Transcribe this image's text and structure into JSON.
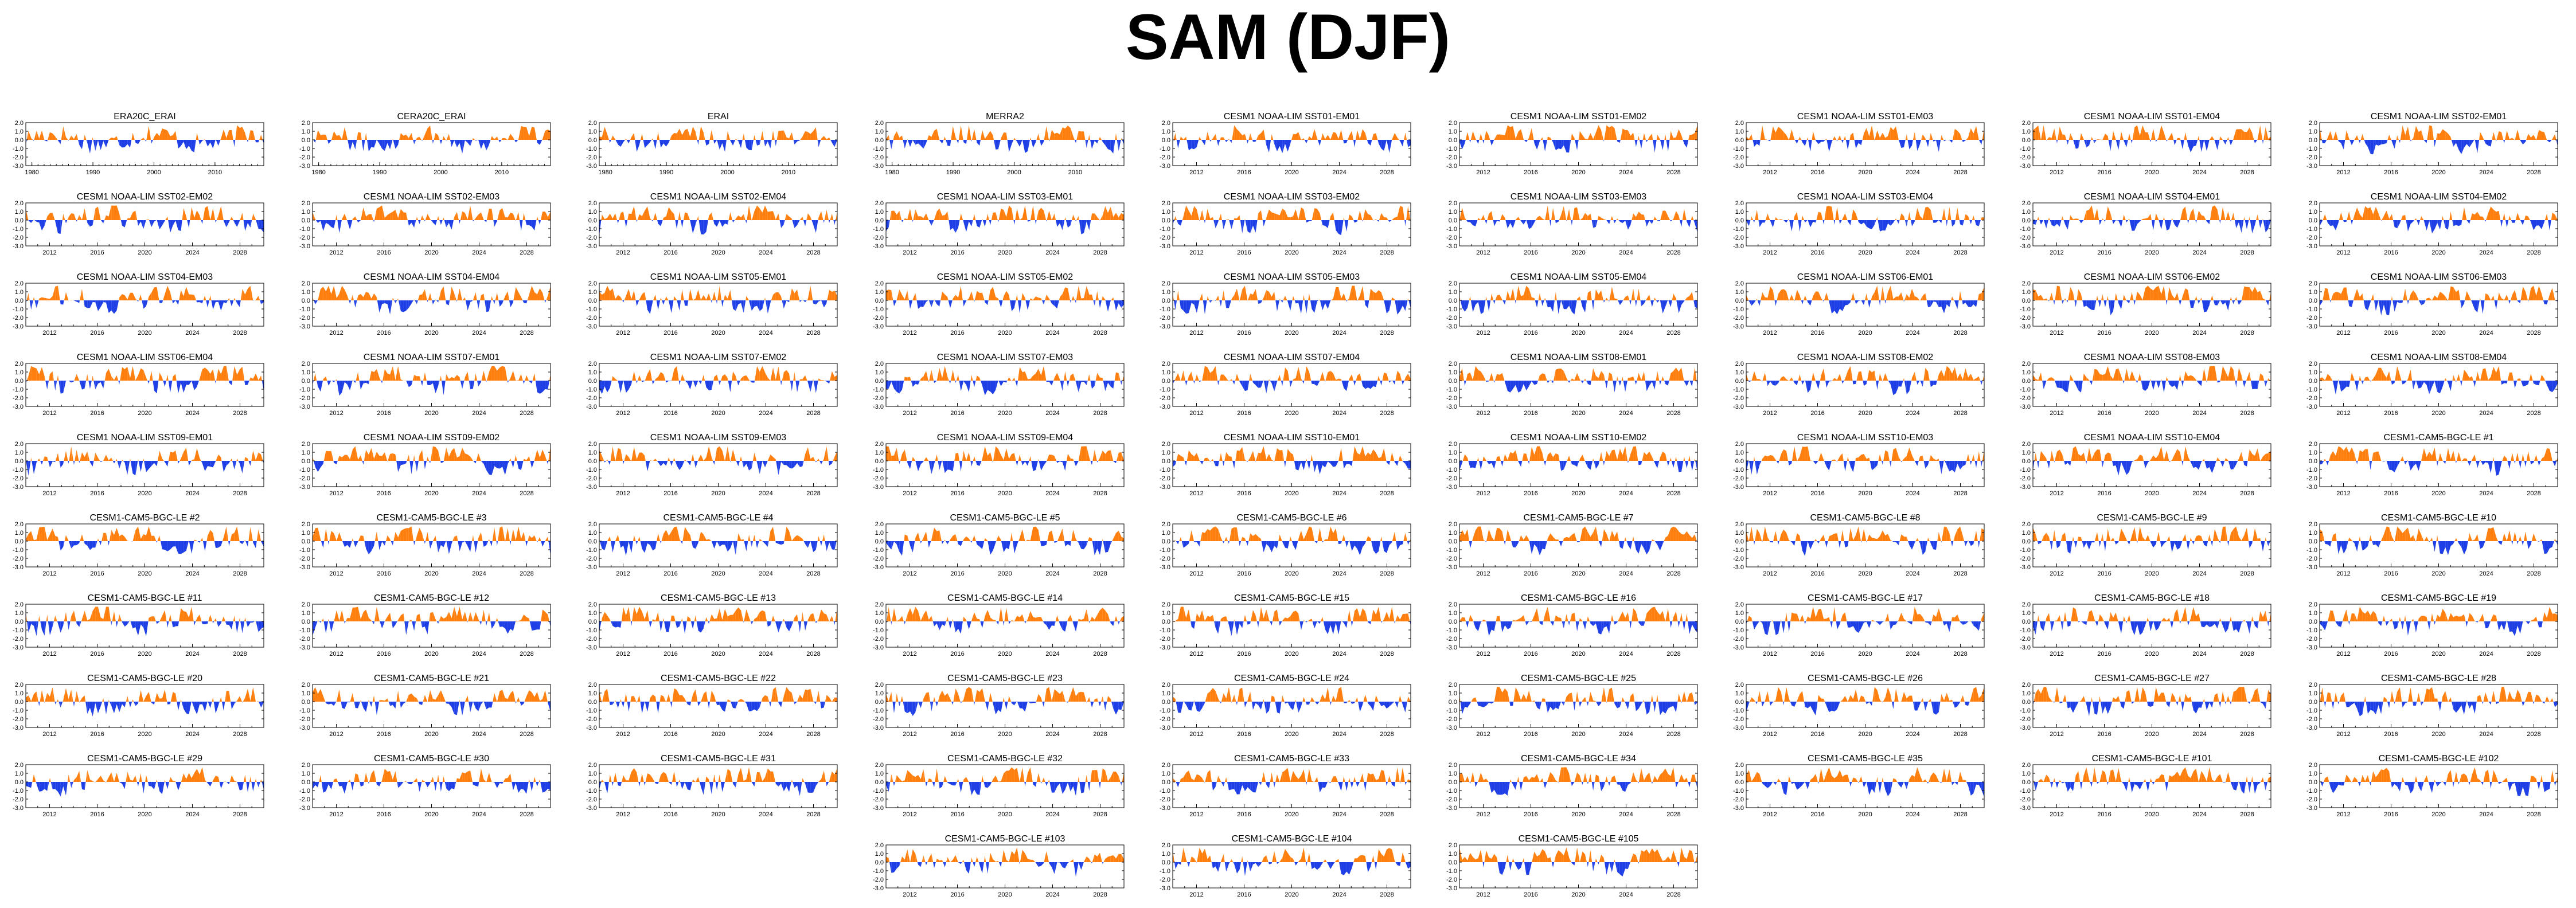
{
  "title": "SAM (DJF)",
  "colors": {
    "positive": "#ff7f0e",
    "negative": "#1f3fe6",
    "axis": "#000000"
  },
  "chart_data": {
    "type": "area",
    "value_axis": {
      "ylim": [
        -3.0,
        2.0
      ],
      "ticks": [
        "2.0",
        "1.0",
        "0.0",
        "-1.0",
        "-2.0",
        "-3.0"
      ]
    },
    "panels": [
      {
        "name": "ERA20C_ERAI",
        "years": [
          1980,
          1990,
          2000,
          2010
        ],
        "xlim": [
          1979,
          2018
        ]
      },
      {
        "name": "CERA20C_ERAI",
        "years": [
          1980,
          1990,
          2000,
          2010
        ],
        "xlim": [
          1979,
          2018
        ]
      },
      {
        "name": "ERAI",
        "years": [
          1980,
          1990,
          2000,
          2010
        ],
        "xlim": [
          1979,
          2018
        ]
      },
      {
        "name": "MERRA2",
        "years": [
          1980,
          1990,
          2000,
          2010
        ],
        "xlim": [
          1979,
          2018
        ]
      },
      {
        "name": "CESM1 NOAA-LIM SST01-EM01",
        "years": [
          2012,
          2016,
          2020,
          2024,
          2028
        ],
        "xlim": [
          2010,
          2030
        ]
      },
      {
        "name": "CESM1 NOAA-LIM SST01-EM02",
        "years": [
          2012,
          2016,
          2020,
          2024,
          2028
        ],
        "xlim": [
          2010,
          2030
        ]
      },
      {
        "name": "CESM1 NOAA-LIM SST01-EM03",
        "years": [
          2012,
          2016,
          2020,
          2024,
          2028
        ],
        "xlim": [
          2010,
          2030
        ]
      },
      {
        "name": "CESM1 NOAA-LIM SST01-EM04",
        "years": [
          2012,
          2016,
          2020,
          2024,
          2028
        ],
        "xlim": [
          2010,
          2030
        ]
      },
      {
        "name": "CESM1 NOAA-LIM SST02-EM01",
        "years": [
          2012,
          2016,
          2020,
          2024,
          2028
        ],
        "xlim": [
          2010,
          2030
        ]
      },
      {
        "name": "CESM1 NOAA-LIM SST02-EM02",
        "years": [
          2012,
          2016,
          2020,
          2024,
          2028
        ],
        "xlim": [
          2010,
          2030
        ]
      },
      {
        "name": "CESM1 NOAA-LIM SST02-EM03",
        "years": [
          2012,
          2016,
          2020,
          2024,
          2028
        ],
        "xlim": [
          2010,
          2030
        ]
      },
      {
        "name": "CESM1 NOAA-LIM SST02-EM04",
        "years": [
          2012,
          2016,
          2020,
          2024,
          2028
        ],
        "xlim": [
          2010,
          2030
        ]
      },
      {
        "name": "CESM1 NOAA-LIM SST03-EM01",
        "years": [
          2012,
          2016,
          2020,
          2024,
          2028
        ],
        "xlim": [
          2010,
          2030
        ]
      },
      {
        "name": "CESM1 NOAA-LIM SST03-EM02",
        "years": [
          2012,
          2016,
          2020,
          2024,
          2028
        ],
        "xlim": [
          2010,
          2030
        ]
      },
      {
        "name": "CESM1 NOAA-LIM SST03-EM03",
        "years": [
          2012,
          2016,
          2020,
          2024,
          2028
        ],
        "xlim": [
          2010,
          2030
        ]
      },
      {
        "name": "CESM1 NOAA-LIM SST03-EM04",
        "years": [
          2012,
          2016,
          2020,
          2024,
          2028
        ],
        "xlim": [
          2010,
          2030
        ]
      },
      {
        "name": "CESM1 NOAA-LIM SST04-EM01",
        "years": [
          2012,
          2016,
          2020,
          2024,
          2028
        ],
        "xlim": [
          2010,
          2030
        ]
      },
      {
        "name": "CESM1 NOAA-LIM SST04-EM02",
        "years": [
          2012,
          2016,
          2020,
          2024,
          2028
        ],
        "xlim": [
          2010,
          2030
        ]
      },
      {
        "name": "CESM1 NOAA-LIM SST04-EM03",
        "years": [
          2012,
          2016,
          2020,
          2024,
          2028
        ],
        "xlim": [
          2010,
          2030
        ]
      },
      {
        "name": "CESM1 NOAA-LIM SST04-EM04",
        "years": [
          2012,
          2016,
          2020,
          2024,
          2028
        ],
        "xlim": [
          2010,
          2030
        ]
      },
      {
        "name": "CESM1 NOAA-LIM SST05-EM01",
        "years": [
          2012,
          2016,
          2020,
          2024,
          2028
        ],
        "xlim": [
          2010,
          2030
        ]
      },
      {
        "name": "CESM1 NOAA-LIM SST05-EM02",
        "years": [
          2012,
          2016,
          2020,
          2024,
          2028
        ],
        "xlim": [
          2010,
          2030
        ]
      },
      {
        "name": "CESM1 NOAA-LIM SST05-EM03",
        "years": [
          2012,
          2016,
          2020,
          2024,
          2028
        ],
        "xlim": [
          2010,
          2030
        ]
      },
      {
        "name": "CESM1 NOAA-LIM SST05-EM04",
        "years": [
          2012,
          2016,
          2020,
          2024,
          2028
        ],
        "xlim": [
          2010,
          2030
        ]
      },
      {
        "name": "CESM1 NOAA-LIM SST06-EM01",
        "years": [
          2012,
          2016,
          2020,
          2024,
          2028
        ],
        "xlim": [
          2010,
          2030
        ]
      },
      {
        "name": "CESM1 NOAA-LIM SST06-EM02",
        "years": [
          2012,
          2016,
          2020,
          2024,
          2028
        ],
        "xlim": [
          2010,
          2030
        ]
      },
      {
        "name": "CESM1 NOAA-LIM SST06-EM03",
        "years": [
          2012,
          2016,
          2020,
          2024,
          2028
        ],
        "xlim": [
          2010,
          2030
        ]
      },
      {
        "name": "CESM1 NOAA-LIM SST06-EM04",
        "years": [
          2012,
          2016,
          2020,
          2024,
          2028
        ],
        "xlim": [
          2010,
          2030
        ]
      },
      {
        "name": "CESM1 NOAA-LIM SST07-EM01",
        "years": [
          2012,
          2016,
          2020,
          2024,
          2028
        ],
        "xlim": [
          2010,
          2030
        ]
      },
      {
        "name": "CESM1 NOAA-LIM SST07-EM02",
        "years": [
          2012,
          2016,
          2020,
          2024,
          2028
        ],
        "xlim": [
          2010,
          2030
        ]
      },
      {
        "name": "CESM1 NOAA-LIM SST07-EM03",
        "years": [
          2012,
          2016,
          2020,
          2024,
          2028
        ],
        "xlim": [
          2010,
          2030
        ]
      },
      {
        "name": "CESM1 NOAA-LIM SST07-EM04",
        "years": [
          2012,
          2016,
          2020,
          2024,
          2028
        ],
        "xlim": [
          2010,
          2030
        ]
      },
      {
        "name": "CESM1 NOAA-LIM SST08-EM01",
        "years": [
          2012,
          2016,
          2020,
          2024,
          2028
        ],
        "xlim": [
          2010,
          2030
        ]
      },
      {
        "name": "CESM1 NOAA-LIM SST08-EM02",
        "years": [
          2012,
          2016,
          2020,
          2024,
          2028
        ],
        "xlim": [
          2010,
          2030
        ]
      },
      {
        "name": "CESM1 NOAA-LIM SST08-EM03",
        "years": [
          2012,
          2016,
          2020,
          2024,
          2028
        ],
        "xlim": [
          2010,
          2030
        ]
      },
      {
        "name": "CESM1 NOAA-LIM SST08-EM04",
        "years": [
          2012,
          2016,
          2020,
          2024,
          2028
        ],
        "xlim": [
          2010,
          2030
        ]
      },
      {
        "name": "CESM1 NOAA-LIM SST09-EM01",
        "years": [
          2012,
          2016,
          2020,
          2024,
          2028
        ],
        "xlim": [
          2010,
          2030
        ]
      },
      {
        "name": "CESM1 NOAA-LIM SST09-EM02",
        "years": [
          2012,
          2016,
          2020,
          2024,
          2028
        ],
        "xlim": [
          2010,
          2030
        ]
      },
      {
        "name": "CESM1 NOAA-LIM SST09-EM03",
        "years": [
          2012,
          2016,
          2020,
          2024,
          2028
        ],
        "xlim": [
          2010,
          2030
        ]
      },
      {
        "name": "CESM1 NOAA-LIM SST09-EM04",
        "years": [
          2012,
          2016,
          2020,
          2024,
          2028
        ],
        "xlim": [
          2010,
          2030
        ]
      },
      {
        "name": "CESM1 NOAA-LIM SST10-EM01",
        "years": [
          2012,
          2016,
          2020,
          2024,
          2028
        ],
        "xlim": [
          2010,
          2030
        ]
      },
      {
        "name": "CESM1 NOAA-LIM SST10-EM02",
        "years": [
          2012,
          2016,
          2020,
          2024,
          2028
        ],
        "xlim": [
          2010,
          2030
        ]
      },
      {
        "name": "CESM1 NOAA-LIM SST10-EM03",
        "years": [
          2012,
          2016,
          2020,
          2024,
          2028
        ],
        "xlim": [
          2010,
          2030
        ]
      },
      {
        "name": "CESM1 NOAA-LIM SST10-EM04",
        "years": [
          2012,
          2016,
          2020,
          2024,
          2028
        ],
        "xlim": [
          2010,
          2030
        ]
      },
      {
        "name": "CESM1-CAM5-BGC-LE #1",
        "years": [
          2012,
          2016,
          2020,
          2024,
          2028
        ],
        "xlim": [
          2010,
          2030
        ]
      },
      {
        "name": "CESM1-CAM5-BGC-LE #2",
        "years": [
          2012,
          2016,
          2020,
          2024,
          2028
        ],
        "xlim": [
          2010,
          2030
        ]
      },
      {
        "name": "CESM1-CAM5-BGC-LE #3",
        "years": [
          2012,
          2016,
          2020,
          2024,
          2028
        ],
        "xlim": [
          2010,
          2030
        ]
      },
      {
        "name": "CESM1-CAM5-BGC-LE #4",
        "years": [
          2012,
          2016,
          2020,
          2024,
          2028
        ],
        "xlim": [
          2010,
          2030
        ]
      },
      {
        "name": "CESM1-CAM5-BGC-LE #5",
        "years": [
          2012,
          2016,
          2020,
          2024,
          2028
        ],
        "xlim": [
          2010,
          2030
        ]
      },
      {
        "name": "CESM1-CAM5-BGC-LE #6",
        "years": [
          2012,
          2016,
          2020,
          2024,
          2028
        ],
        "xlim": [
          2010,
          2030
        ]
      },
      {
        "name": "CESM1-CAM5-BGC-LE #7",
        "years": [
          2012,
          2016,
          2020,
          2024,
          2028
        ],
        "xlim": [
          2010,
          2030
        ]
      },
      {
        "name": "CESM1-CAM5-BGC-LE #8",
        "years": [
          2012,
          2016,
          2020,
          2024,
          2028
        ],
        "xlim": [
          2010,
          2030
        ]
      },
      {
        "name": "CESM1-CAM5-BGC-LE #9",
        "years": [
          2012,
          2016,
          2020,
          2024,
          2028
        ],
        "xlim": [
          2010,
          2030
        ]
      },
      {
        "name": "CESM1-CAM5-BGC-LE #10",
        "years": [
          2012,
          2016,
          2020,
          2024,
          2028
        ],
        "xlim": [
          2010,
          2030
        ]
      },
      {
        "name": "CESM1-CAM5-BGC-LE #11",
        "years": [
          2012,
          2016,
          2020,
          2024,
          2028
        ],
        "xlim": [
          2010,
          2030
        ]
      },
      {
        "name": "CESM1-CAM5-BGC-LE #12",
        "years": [
          2012,
          2016,
          2020,
          2024,
          2028
        ],
        "xlim": [
          2010,
          2030
        ]
      },
      {
        "name": "CESM1-CAM5-BGC-LE #13",
        "years": [
          2012,
          2016,
          2020,
          2024,
          2028
        ],
        "xlim": [
          2010,
          2030
        ]
      },
      {
        "name": "CESM1-CAM5-BGC-LE #14",
        "years": [
          2012,
          2016,
          2020,
          2024,
          2028
        ],
        "xlim": [
          2010,
          2030
        ]
      },
      {
        "name": "CESM1-CAM5-BGC-LE #15",
        "years": [
          2012,
          2016,
          2020,
          2024,
          2028
        ],
        "xlim": [
          2010,
          2030
        ]
      },
      {
        "name": "CESM1-CAM5-BGC-LE #16",
        "years": [
          2012,
          2016,
          2020,
          2024,
          2028
        ],
        "xlim": [
          2010,
          2030
        ]
      },
      {
        "name": "CESM1-CAM5-BGC-LE #17",
        "years": [
          2012,
          2016,
          2020,
          2024,
          2028
        ],
        "xlim": [
          2010,
          2030
        ]
      },
      {
        "name": "CESM1-CAM5-BGC-LE #18",
        "years": [
          2012,
          2016,
          2020,
          2024,
          2028
        ],
        "xlim": [
          2010,
          2030
        ]
      },
      {
        "name": "CESM1-CAM5-BGC-LE #19",
        "years": [
          2012,
          2016,
          2020,
          2024,
          2028
        ],
        "xlim": [
          2010,
          2030
        ]
      },
      {
        "name": "CESM1-CAM5-BGC-LE #20",
        "years": [
          2012,
          2016,
          2020,
          2024,
          2028
        ],
        "xlim": [
          2010,
          2030
        ]
      },
      {
        "name": "CESM1-CAM5-BGC-LE #21",
        "years": [
          2012,
          2016,
          2020,
          2024,
          2028
        ],
        "xlim": [
          2010,
          2030
        ]
      },
      {
        "name": "CESM1-CAM5-BGC-LE #22",
        "years": [
          2012,
          2016,
          2020,
          2024,
          2028
        ],
        "xlim": [
          2010,
          2030
        ]
      },
      {
        "name": "CESM1-CAM5-BGC-LE #23",
        "years": [
          2012,
          2016,
          2020,
          2024,
          2028
        ],
        "xlim": [
          2010,
          2030
        ]
      },
      {
        "name": "CESM1-CAM5-BGC-LE #24",
        "years": [
          2012,
          2016,
          2020,
          2024,
          2028
        ],
        "xlim": [
          2010,
          2030
        ]
      },
      {
        "name": "CESM1-CAM5-BGC-LE #25",
        "years": [
          2012,
          2016,
          2020,
          2024,
          2028
        ],
        "xlim": [
          2010,
          2030
        ]
      },
      {
        "name": "CESM1-CAM5-BGC-LE #26",
        "years": [
          2012,
          2016,
          2020,
          2024,
          2028
        ],
        "xlim": [
          2010,
          2030
        ]
      },
      {
        "name": "CESM1-CAM5-BGC-LE #27",
        "years": [
          2012,
          2016,
          2020,
          2024,
          2028
        ],
        "xlim": [
          2010,
          2030
        ]
      },
      {
        "name": "CESM1-CAM5-BGC-LE #28",
        "years": [
          2012,
          2016,
          2020,
          2024,
          2028
        ],
        "xlim": [
          2010,
          2030
        ]
      },
      {
        "name": "CESM1-CAM5-BGC-LE #29",
        "years": [
          2012,
          2016,
          2020,
          2024,
          2028
        ],
        "xlim": [
          2010,
          2030
        ]
      },
      {
        "name": "CESM1-CAM5-BGC-LE #30",
        "years": [
          2012,
          2016,
          2020,
          2024,
          2028
        ],
        "xlim": [
          2010,
          2030
        ]
      },
      {
        "name": "CESM1-CAM5-BGC-LE #31",
        "years": [
          2012,
          2016,
          2020,
          2024,
          2028
        ],
        "xlim": [
          2010,
          2030
        ]
      },
      {
        "name": "CESM1-CAM5-BGC-LE #32",
        "years": [
          2012,
          2016,
          2020,
          2024,
          2028
        ],
        "xlim": [
          2010,
          2030
        ]
      },
      {
        "name": "CESM1-CAM5-BGC-LE #33",
        "years": [
          2012,
          2016,
          2020,
          2024,
          2028
        ],
        "xlim": [
          2010,
          2030
        ]
      },
      {
        "name": "CESM1-CAM5-BGC-LE #34",
        "years": [
          2012,
          2016,
          2020,
          2024,
          2028
        ],
        "xlim": [
          2010,
          2030
        ]
      },
      {
        "name": "CESM1-CAM5-BGC-LE #35",
        "years": [
          2012,
          2016,
          2020,
          2024,
          2028
        ],
        "xlim": [
          2010,
          2030
        ]
      },
      {
        "name": "CESM1-CAM5-BGC-LE #101",
        "years": [
          2012,
          2016,
          2020,
          2024,
          2028
        ],
        "xlim": [
          2010,
          2030
        ]
      },
      {
        "name": "CESM1-CAM5-BGC-LE #102",
        "years": [
          2012,
          2016,
          2020,
          2024,
          2028
        ],
        "xlim": [
          2010,
          2030
        ]
      },
      {
        "name": "CESM1-CAM5-BGC-LE #103",
        "years": [
          2012,
          2016,
          2020,
          2024,
          2028
        ],
        "xlim": [
          2010,
          2030
        ]
      },
      {
        "name": "CESM1-CAM5-BGC-LE #104",
        "years": [
          2012,
          2016,
          2020,
          2024,
          2028
        ],
        "xlim": [
          2010,
          2030
        ]
      },
      {
        "name": "CESM1-CAM5-BGC-LE #105",
        "years": [
          2012,
          2016,
          2020,
          2024,
          2028
        ],
        "xlim": [
          2010,
          2030
        ]
      }
    ]
  }
}
